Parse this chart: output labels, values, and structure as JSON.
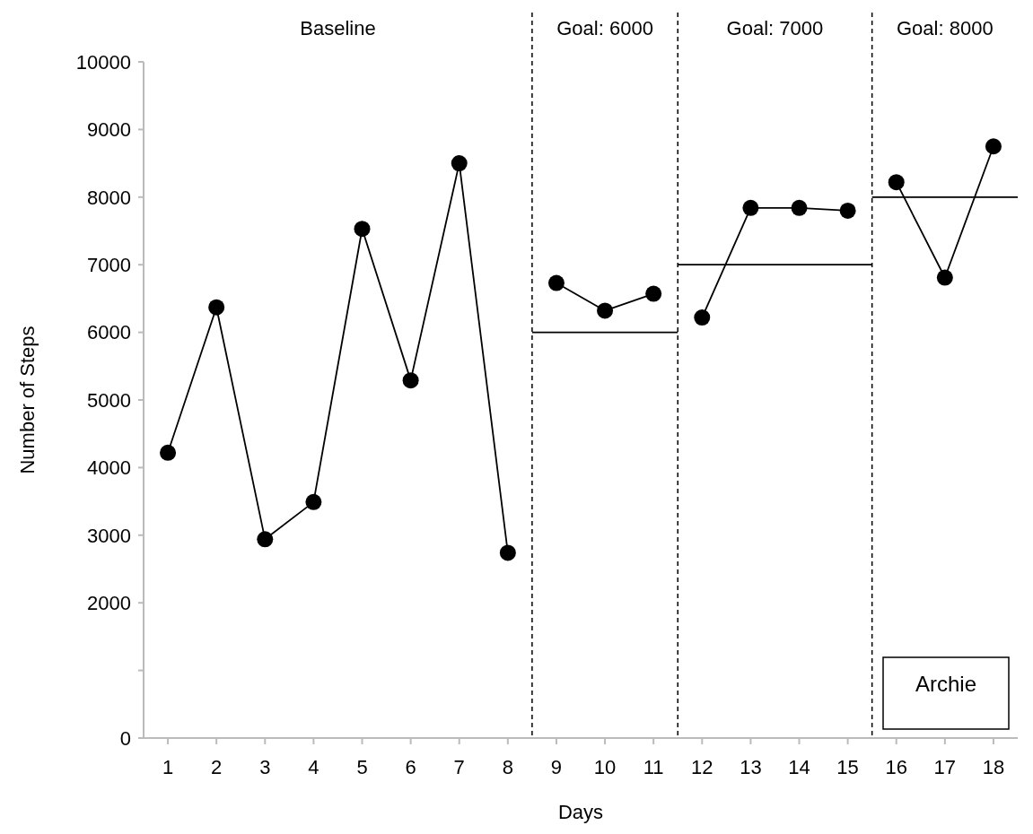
{
  "chart_data": {
    "type": "line",
    "xlabel": "Days",
    "ylabel": "Number of Steps",
    "xlim": [
      0.5,
      18.5
    ],
    "xticks": [
      1,
      2,
      3,
      4,
      5,
      6,
      7,
      8,
      9,
      10,
      11,
      12,
      13,
      14,
      15,
      16,
      17,
      18
    ],
    "ylim": [
      0,
      10000
    ],
    "yticks": [
      0,
      {
        "value": 1000,
        "label": null
      },
      2000,
      3000,
      4000,
      5000,
      6000,
      7000,
      8000,
      9000,
      10000
    ],
    "marker": "circle",
    "grid": false,
    "series": [
      {
        "color": "#000000",
        "x": [
          1,
          2,
          3,
          4,
          5,
          6,
          7,
          8,
          8.5,
          9,
          10,
          11,
          11.5,
          12,
          13,
          14,
          15,
          15.5,
          16,
          17,
          18
        ],
        "values": [
          4220,
          6370,
          2940,
          3490,
          7530,
          5290,
          8500,
          2740,
          null,
          6730,
          6320,
          6570,
          null,
          6220,
          7840,
          7840,
          7800,
          null,
          8220,
          6810,
          8750
        ]
      },
      {
        "color": "#000000",
        "marker": "none",
        "x": [
          8.5,
          11.5
        ],
        "values": [
          6000,
          6000
        ]
      },
      {
        "color": "#000000",
        "marker": "none",
        "x": [
          11.5,
          15.5
        ],
        "values": [
          7000,
          7000
        ]
      },
      {
        "color": "#000000",
        "marker": "none",
        "x": [
          15.5,
          18.5
        ],
        "values": [
          8000,
          8000
        ]
      }
    ],
    "ref_lines": [
      {
        "axis": "x",
        "value": 8.5,
        "line_style": "dashed",
        "color": "#000000"
      },
      {
        "axis": "x",
        "value": 11.5,
        "line_style": "dashed",
        "color": "#000000"
      },
      {
        "axis": "x",
        "value": 15.5,
        "line_style": "dashed",
        "color": "#000000"
      }
    ],
    "annotations": [
      "Baseline",
      "Goal: 6000",
      "Goal: 7000",
      "Goal: 8000",
      "Archie"
    ]
  }
}
